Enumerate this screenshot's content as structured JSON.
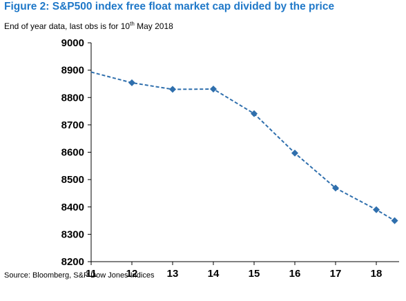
{
  "figure": {
    "title": "Figure 2: S&P500 index free float market cap divided by the price",
    "subtitle_pre": "End of year data, last obs is for 10",
    "subtitle_sup": "th",
    "subtitle_post": " May 2018",
    "source": "Source: Bloomberg, S&P Dow Jones Indices"
  },
  "colors": {
    "title": "#1f78c8",
    "series": "#2f6fad",
    "axis": "#000000"
  },
  "chart_data": {
    "type": "line",
    "title": "Figure 2: S&P500 index free float market cap divided by the price",
    "xlabel": "",
    "ylabel": "",
    "xlim": [
      11,
      18.5
    ],
    "ylim": [
      8200,
      9000
    ],
    "x_ticks": [
      11,
      12,
      13,
      14,
      15,
      16,
      17,
      18
    ],
    "y_ticks": [
      8200,
      8300,
      8400,
      8500,
      8600,
      8700,
      8800,
      8900,
      9000
    ],
    "grid": false,
    "legend": "none",
    "line_style": "dashed",
    "marker": "diamond",
    "line_start": {
      "x": 11,
      "y": 8893
    },
    "series": [
      {
        "x": [
          12,
          13,
          14,
          15,
          16,
          17,
          18,
          18.45
        ],
        "y": [
          8854,
          8830,
          8831,
          8741,
          8597,
          8469,
          8390,
          8350
        ]
      }
    ]
  }
}
